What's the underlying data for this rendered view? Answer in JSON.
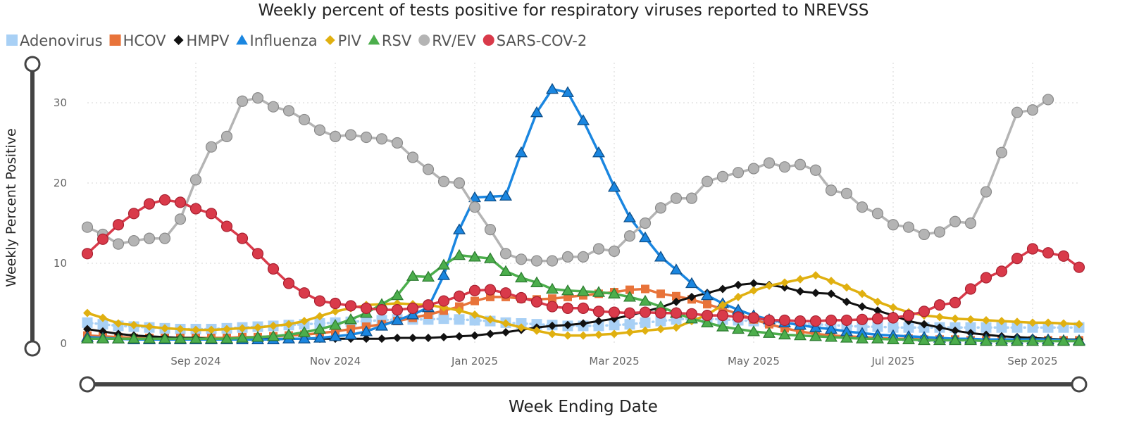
{
  "chart_data": {
    "type": "line",
    "title": "Weekly percent of tests positive for respiratory viruses reported to NREVSS",
    "xlabel": "Week Ending Date",
    "ylabel": "Weekly Percent Positive",
    "ylim": [
      0,
      35
    ],
    "yticks": [
      0,
      10,
      20,
      30
    ],
    "x_range": [
      "2024-07-13",
      "2025-09-20"
    ],
    "x_ticks": [
      {
        "label": "Sep 2024",
        "week": 7
      },
      {
        "label": "Nov 2024",
        "week": 16
      },
      {
        "label": "Jan 2025",
        "week": 25
      },
      {
        "label": "Mar 2025",
        "week": 34
      },
      {
        "label": "May 2025",
        "week": 43
      },
      {
        "label": "Jul 2025",
        "week": 52
      },
      {
        "label": "Sep 2025",
        "week": 61
      }
    ],
    "legend_position": "top-left",
    "grid": true,
    "series": [
      {
        "name": "Adenovirus",
        "color": "#a8d0f5",
        "marker": "square",
        "line": "dotted",
        "values": [
          2.6,
          2.4,
          2.2,
          2.1,
          2.0,
          1.9,
          1.8,
          1.8,
          1.8,
          1.9,
          2.0,
          2.1,
          2.2,
          2.3,
          2.4,
          2.5,
          2.6,
          2.7,
          2.8,
          2.9,
          3.0,
          3.0,
          3.0,
          3.1,
          3.0,
          2.9,
          2.8,
          2.6,
          2.5,
          2.4,
          2.3,
          2.2,
          2.2,
          2.2,
          2.3,
          2.4,
          2.6,
          2.8,
          3.0,
          3.1,
          3.1,
          3.0,
          2.9,
          2.8,
          2.7,
          2.6,
          2.5,
          2.4,
          2.3,
          2.2,
          2.1,
          2.1,
          2.0,
          2.0,
          2.0,
          2.0,
          2.0,
          2.0,
          2.0,
          2.0,
          2.0,
          2.0,
          2.0,
          2.0,
          2.0
        ]
      },
      {
        "name": "HCOV",
        "color": "#e8733a",
        "marker": "square",
        "line": "solid",
        "values": [
          1.0,
          0.9,
          0.8,
          0.7,
          0.7,
          0.7,
          0.7,
          0.7,
          0.7,
          0.7,
          0.8,
          0.8,
          0.9,
          1.0,
          1.1,
          1.3,
          1.5,
          1.8,
          2.1,
          2.4,
          2.8,
          3.2,
          3.6,
          4.1,
          4.6,
          5.3,
          5.8,
          5.8,
          5.6,
          5.5,
          5.6,
          5.8,
          6.0,
          6.2,
          6.4,
          6.7,
          6.8,
          6.2,
          5.9,
          5.5,
          4.9,
          4.3,
          3.7,
          3.0,
          2.4,
          1.9,
          1.5,
          1.2,
          1.0,
          0.9,
          0.8,
          0.7,
          0.6,
          0.6,
          0.5,
          0.5,
          0.5,
          0.4,
          0.4,
          0.4,
          0.4,
          0.4,
          0.4,
          0.4,
          0.4
        ]
      },
      {
        "name": "HMPV",
        "color": "#111111",
        "marker": "diamond",
        "line": "solid",
        "values": [
          1.8,
          1.5,
          1.2,
          1.0,
          0.9,
          0.8,
          0.7,
          0.7,
          0.6,
          0.6,
          0.6,
          0.6,
          0.6,
          0.6,
          0.6,
          0.6,
          0.6,
          0.6,
          0.6,
          0.6,
          0.7,
          0.7,
          0.7,
          0.8,
          0.9,
          1.0,
          1.2,
          1.4,
          1.7,
          2.0,
          2.2,
          2.3,
          2.5,
          2.8,
          3.1,
          3.5,
          4.0,
          4.5,
          5.2,
          5.8,
          6.3,
          6.8,
          7.3,
          7.5,
          7.3,
          7.0,
          6.5,
          6.3,
          6.2,
          5.2,
          4.6,
          4.1,
          3.5,
          2.8,
          2.4,
          2.0,
          1.6,
          1.3,
          1.1,
          0.9,
          0.8,
          0.7,
          0.6,
          0.5,
          0.5
        ]
      },
      {
        "name": "Influenza",
        "color": "#1a86e0",
        "marker": "triangle",
        "line": "solid",
        "values": [
          0.8,
          0.7,
          0.6,
          0.5,
          0.5,
          0.5,
          0.5,
          0.5,
          0.5,
          0.5,
          0.5,
          0.5,
          0.5,
          0.6,
          0.6,
          0.7,
          0.9,
          1.1,
          1.5,
          2.2,
          2.9,
          3.6,
          4.5,
          8.5,
          14.2,
          18.2,
          18.3,
          18.4,
          23.8,
          28.8,
          31.7,
          31.3,
          27.8,
          23.8,
          19.5,
          15.7,
          13.2,
          10.8,
          9.2,
          7.5,
          6.0,
          5.0,
          4.2,
          3.5,
          3.0,
          2.6,
          2.3,
          2.0,
          1.8,
          1.5,
          1.3,
          1.1,
          1.0,
          0.9,
          0.8,
          0.7,
          0.6,
          0.6,
          0.5,
          0.5,
          0.5,
          0.5,
          0.5,
          0.4,
          0.4
        ]
      },
      {
        "name": "PIV",
        "color": "#e0b010",
        "marker": "diamond",
        "line": "solid",
        "values": [
          3.8,
          3.2,
          2.5,
          2.3,
          2.1,
          1.9,
          1.8,
          1.7,
          1.7,
          1.8,
          1.9,
          2.0,
          2.2,
          2.4,
          2.8,
          3.4,
          4.0,
          4.4,
          4.8,
          4.9,
          5.0,
          4.9,
          4.8,
          4.5,
          4.1,
          3.6,
          3.0,
          2.5,
          2.0,
          1.6,
          1.2,
          1.0,
          1.0,
          1.1,
          1.2,
          1.4,
          1.6,
          1.8,
          2.0,
          2.8,
          3.6,
          4.8,
          5.8,
          6.6,
          7.2,
          7.6,
          8.0,
          8.5,
          7.8,
          7.0,
          6.2,
          5.2,
          4.5,
          3.9,
          3.5,
          3.3,
          3.1,
          3.0,
          2.9,
          2.8,
          2.7,
          2.6,
          2.6,
          2.5,
          2.4
        ]
      },
      {
        "name": "RSV",
        "color": "#4cae4c",
        "marker": "triangle",
        "line": "solid",
        "values": [
          0.6,
          0.6,
          0.6,
          0.6,
          0.6,
          0.6,
          0.6,
          0.6,
          0.6,
          0.6,
          0.7,
          0.8,
          0.9,
          1.1,
          1.4,
          1.8,
          2.3,
          3.0,
          3.8,
          4.9,
          6.0,
          8.4,
          8.3,
          9.8,
          11.0,
          10.8,
          10.6,
          9.0,
          8.2,
          7.6,
          6.8,
          6.6,
          6.5,
          6.4,
          6.2,
          5.8,
          5.3,
          4.6,
          3.8,
          3.1,
          2.6,
          2.1,
          1.8,
          1.5,
          1.3,
          1.1,
          1.0,
          0.9,
          0.8,
          0.7,
          0.6,
          0.6,
          0.5,
          0.5,
          0.4,
          0.4,
          0.4,
          0.4,
          0.3,
          0.3,
          0.3,
          0.3,
          0.3,
          0.3,
          0.3
        ]
      },
      {
        "name": "RV/EV",
        "color": "#b4b4b4",
        "marker": "circle",
        "line": "solid",
        "values": [
          14.5,
          13.6,
          12.4,
          12.8,
          13.1,
          13.1,
          15.5,
          20.4,
          24.5,
          25.8,
          30.2,
          30.6,
          29.5,
          29.0,
          27.9,
          26.6,
          25.8,
          26.0,
          25.7,
          25.5,
          25.0,
          23.2,
          21.7,
          20.2,
          20.0,
          17.0,
          14.2,
          11.2,
          10.5,
          10.3,
          10.3,
          10.8,
          10.8,
          11.8,
          11.5,
          13.4,
          15.0,
          16.9,
          18.1,
          18.1,
          20.2,
          20.8,
          21.3,
          21.8,
          22.5,
          22.0,
          22.3,
          21.6,
          19.1,
          18.7,
          17.0,
          16.2,
          14.8,
          14.5,
          13.6,
          13.9,
          15.2,
          15.0,
          18.9,
          23.8,
          28.8,
          29.1,
          30.4,
          null,
          null
        ]
      },
      {
        "name": "SARS-COV-2",
        "color": "#d93a4a",
        "marker": "circle",
        "line": "solid",
        "values": [
          11.2,
          13.0,
          14.8,
          16.2,
          17.4,
          17.9,
          17.6,
          16.8,
          16.2,
          14.6,
          13.1,
          11.2,
          9.3,
          7.5,
          6.3,
          5.3,
          5.0,
          4.7,
          4.4,
          4.2,
          4.2,
          4.4,
          4.8,
          5.3,
          5.9,
          6.6,
          6.7,
          6.3,
          5.7,
          5.2,
          4.6,
          4.4,
          4.4,
          4.0,
          3.9,
          3.8,
          3.9,
          3.8,
          3.8,
          3.7,
          3.5,
          3.5,
          3.3,
          3.2,
          2.9,
          2.9,
          2.8,
          2.8,
          2.9,
          2.9,
          3.0,
          3.1,
          3.2,
          3.5,
          4.0,
          4.8,
          5.1,
          6.8,
          8.2,
          9.0,
          10.6,
          11.8,
          11.3,
          10.9,
          9.5
        ]
      }
    ]
  }
}
